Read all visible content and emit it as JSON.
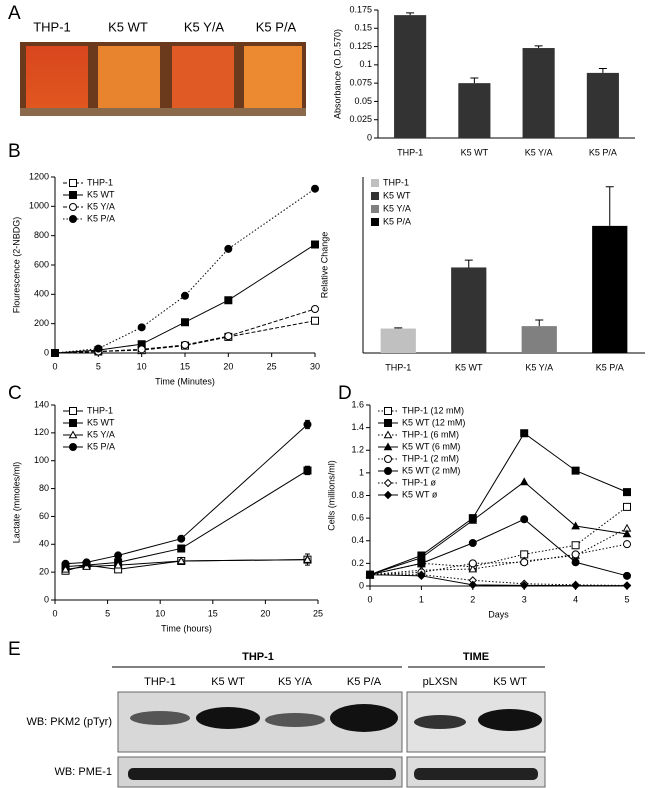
{
  "panel_labels": [
    "A",
    "B",
    "C",
    "D",
    "E"
  ],
  "photo": {
    "labels": [
      "THP-1",
      "K5 WT",
      "K5 Y/A",
      "K5 P/A"
    ]
  },
  "blot": {
    "groups": [
      "THP-1",
      "TIME"
    ],
    "lanes": [
      "THP-1",
      "K5 WT",
      "K5 Y/A",
      "K5 P/A",
      "pLXSN",
      "K5 WT"
    ],
    "rows": [
      "WB: PKM2 (pTyr)",
      "WB: PME-1"
    ]
  },
  "chart_data": [
    {
      "type": "bar",
      "y_label": "Absorbance (O.D.570)",
      "categories": [
        "THP-1",
        "K5 WT",
        "K5 Y/A",
        "K5 P/A"
      ],
      "values": [
        0.168,
        0.075,
        0.123,
        0.089
      ],
      "errors": [
        0.003,
        0.007,
        0.003,
        0.006
      ],
      "color": "#333333",
      "ylim": [
        0,
        0.175
      ],
      "yticks": [
        0,
        0.025,
        0.05,
        0.075,
        0.1,
        0.125,
        0.15,
        0.175
      ]
    },
    {
      "type": "line",
      "x_label": "Time (Minutes)",
      "y_label": "Flourescence (2-NBDG)",
      "x": [
        0,
        5,
        10,
        15,
        20,
        30
      ],
      "legend": "top-left",
      "series": [
        {
          "name": "THP-1",
          "color": "#000000",
          "marker": "square",
          "filled": false,
          "dash": "dashed",
          "values": [
            0,
            10,
            20,
            50,
            110,
            220
          ]
        },
        {
          "name": "K5 WT",
          "color": "#000000",
          "marker": "square",
          "filled": true,
          "dash": "solid",
          "values": [
            0,
            20,
            60,
            210,
            360,
            740
          ]
        },
        {
          "name": "K5 Y/A",
          "color": "#000000",
          "marker": "circle",
          "filled": false,
          "dash": "dashed",
          "values": [
            0,
            10,
            25,
            55,
            115,
            300
          ]
        },
        {
          "name": "K5 P/A",
          "color": "#000000",
          "marker": "circle",
          "filled": true,
          "dash": "dotted",
          "values": [
            0,
            30,
            175,
            390,
            710,
            1120
          ]
        }
      ],
      "xlim": [
        0,
        30
      ],
      "xticks": [
        0,
        5,
        10,
        15,
        20,
        25,
        30
      ],
      "ylim": [
        0,
        1200
      ],
      "yticks": [
        0,
        200,
        400,
        600,
        800,
        1000,
        1200
      ]
    },
    {
      "type": "bar",
      "y_label": "Relative Change",
      "legend": "top-left",
      "categories": [
        "THP-1",
        "K5 WT",
        "K5 Y/A",
        "K5 P/A"
      ],
      "values": [
        1.0,
        3.5,
        1.1,
        5.2
      ],
      "errors": [
        0.03,
        0.3,
        0.25,
        1.6
      ],
      "colors": [
        "#c0c0c0",
        "#333333",
        "#808080",
        "#000000"
      ],
      "ylim": [
        0,
        7.2
      ]
    },
    {
      "type": "line",
      "x_label": "Time (hours)",
      "y_label": "Lactate (mmoles/ml)",
      "x": [
        1,
        3,
        6,
        12,
        24
      ],
      "legend": "top-left",
      "series": [
        {
          "name": "THP-1",
          "color": "#000000",
          "marker": "square",
          "filled": false,
          "dash": "solid",
          "values": [
            21,
            25,
            22,
            28,
            29
          ],
          "errors": [
            1,
            1,
            1,
            1,
            4
          ]
        },
        {
          "name": "K5 WT",
          "color": "#000000",
          "marker": "square",
          "filled": true,
          "dash": "solid",
          "values": [
            24,
            25,
            27,
            37,
            93
          ],
          "errors": [
            1,
            1,
            1,
            1,
            3
          ]
        },
        {
          "name": "K5 Y/A",
          "color": "#000000",
          "marker": "triangle",
          "filled": false,
          "dash": "solid",
          "values": [
            22,
            24,
            25,
            28,
            29
          ],
          "errors": [
            1,
            1,
            1,
            1,
            1
          ]
        },
        {
          "name": "K5 P/A",
          "color": "#000000",
          "marker": "circle",
          "filled": true,
          "dash": "solid",
          "values": [
            26,
            27,
            32,
            44,
            126
          ],
          "errors": [
            1,
            1,
            1,
            1,
            3
          ]
        }
      ],
      "xlim": [
        0,
        25
      ],
      "xticks": [
        0,
        5,
        10,
        15,
        20,
        25
      ],
      "ylim": [
        0,
        140
      ],
      "yticks": [
        0,
        20,
        40,
        60,
        80,
        100,
        120,
        140
      ]
    },
    {
      "type": "line",
      "x_label": "Days",
      "y_label": "Cells (millions/ml)",
      "x": [
        0,
        1,
        2,
        3,
        4,
        5
      ],
      "legend": "top-left",
      "series": [
        {
          "name": "THP-1 (12 mM)",
          "color": "#000000",
          "marker": "square",
          "filled": false,
          "dash": "dotted",
          "values": [
            0.1,
            0.2,
            0.17,
            0.28,
            0.36,
            0.7
          ]
        },
        {
          "name": "K5 WT (12 mM)",
          "color": "#000000",
          "marker": "square",
          "filled": true,
          "dash": "solid",
          "values": [
            0.1,
            0.27,
            0.6,
            1.35,
            1.02,
            0.83
          ]
        },
        {
          "name": "THP-1 (6 mM)",
          "color": "#000000",
          "marker": "triangle",
          "filled": false,
          "dash": "dotted",
          "values": [
            0.1,
            0.14,
            0.15,
            0.22,
            0.27,
            0.51
          ]
        },
        {
          "name": "K5 WT (6 mM)",
          "color": "#000000",
          "marker": "triangle",
          "filled": true,
          "dash": "solid",
          "values": [
            0.1,
            0.25,
            0.58,
            0.92,
            0.53,
            0.46
          ]
        },
        {
          "name": "THP-1 (2 mM)",
          "color": "#000000",
          "marker": "circle",
          "filled": false,
          "dash": "dotted",
          "values": [
            0.1,
            0.12,
            0.2,
            0.21,
            0.28,
            0.37
          ]
        },
        {
          "name": "K5 WT (2 mM)",
          "color": "#000000",
          "marker": "circle",
          "filled": true,
          "dash": "solid",
          "values": [
            0.1,
            0.2,
            0.38,
            0.59,
            0.21,
            0.09
          ]
        },
        {
          "name": "THP-1 ø",
          "color": "#000000",
          "marker": "diamond",
          "filled": false,
          "dash": "dotted",
          "values": [
            0.1,
            0.1,
            0.05,
            0.02,
            0.01,
            0.005
          ]
        },
        {
          "name": "K5 WT ø",
          "color": "#000000",
          "marker": "diamond",
          "filled": true,
          "dash": "solid",
          "values": [
            0.1,
            0.09,
            0.01,
            0.005,
            0.003,
            0.003
          ]
        }
      ],
      "xlim": [
        0,
        5
      ],
      "xticks": [
        0,
        1,
        2,
        3,
        4,
        5
      ],
      "ylim": [
        0,
        1.6
      ],
      "yticks": [
        0,
        0.2,
        0.4,
        0.6,
        0.8,
        1,
        1.2,
        1.4,
        1.6
      ]
    }
  ]
}
